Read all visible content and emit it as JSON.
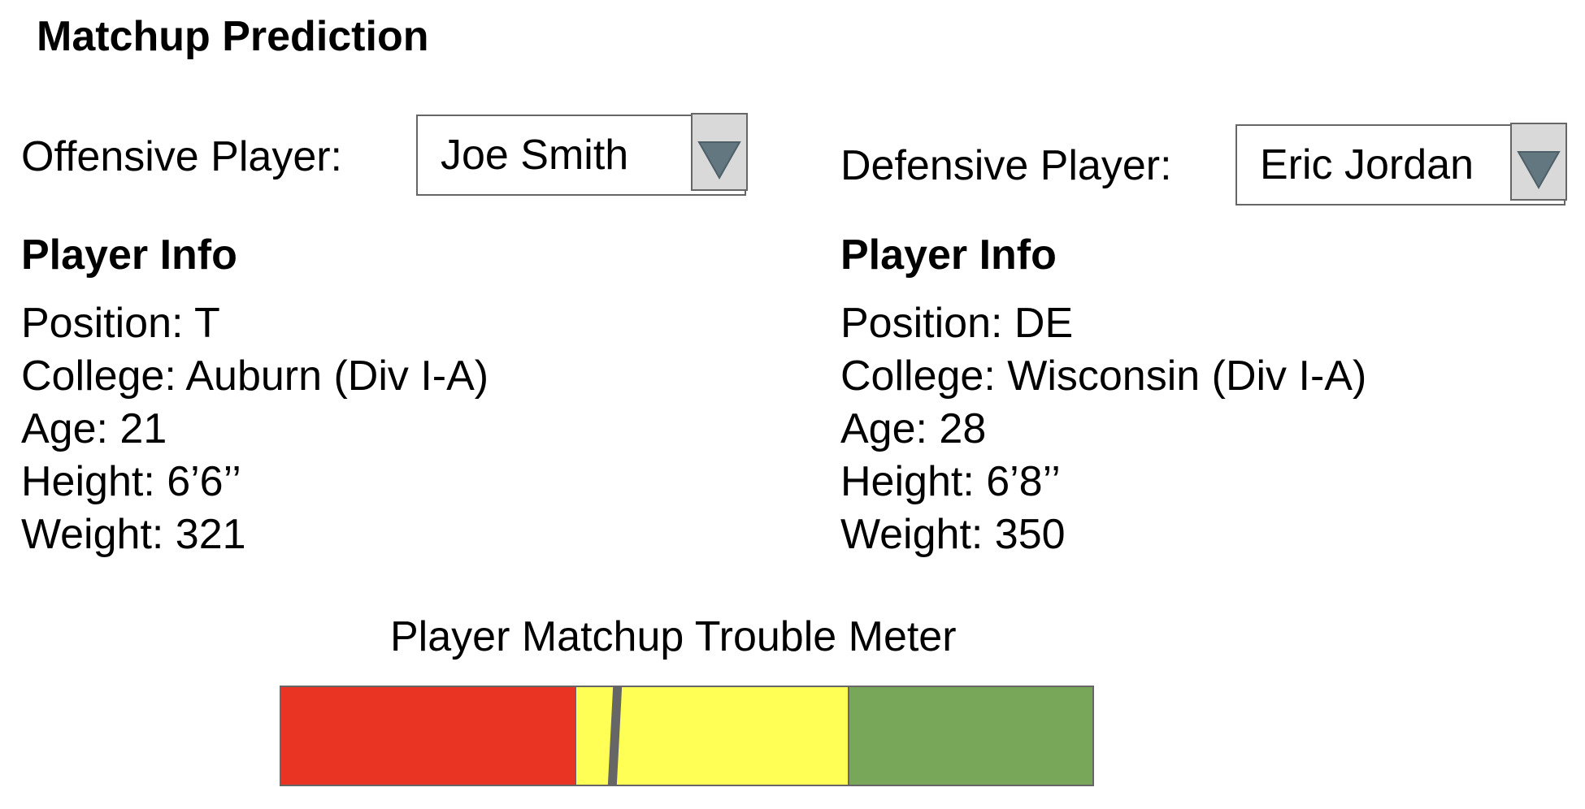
{
  "page": {
    "title": "Matchup Prediction"
  },
  "offense": {
    "label": "Offensive Player:",
    "selected": "Joe Smith",
    "info_heading": "Player Info",
    "info": [
      "Position: T",
      "College: Auburn (Div I-A)",
      "Age: 21",
      "Height: 6’6’’",
      "Weight: 321"
    ]
  },
  "defense": {
    "label": "Defensive Player:",
    "selected": "Eric Jordan",
    "info_heading": "Player Info",
    "info": [
      "Position: DE",
      "College: Wisconsin (Div I-A)",
      "Age: 28",
      "Height: 6’8’’",
      "Weight: 350"
    ]
  },
  "meter": {
    "title": "Player Matchup Trouble Meter",
    "segments": [
      {
        "color": "#e93323",
        "fraction": 0.362
      },
      {
        "color": "#ffff55",
        "fraction": 0.336
      },
      {
        "color": "#78a75a",
        "fraction": 0.302
      }
    ],
    "needle_value": 0.411,
    "needle_color": "#666666"
  },
  "icons": {
    "dropdown": "chevron-down-icon"
  },
  "colors": {
    "dropdown_button": "#d9d9d9",
    "dropdown_arrow": "#637781",
    "border": "#666666"
  }
}
